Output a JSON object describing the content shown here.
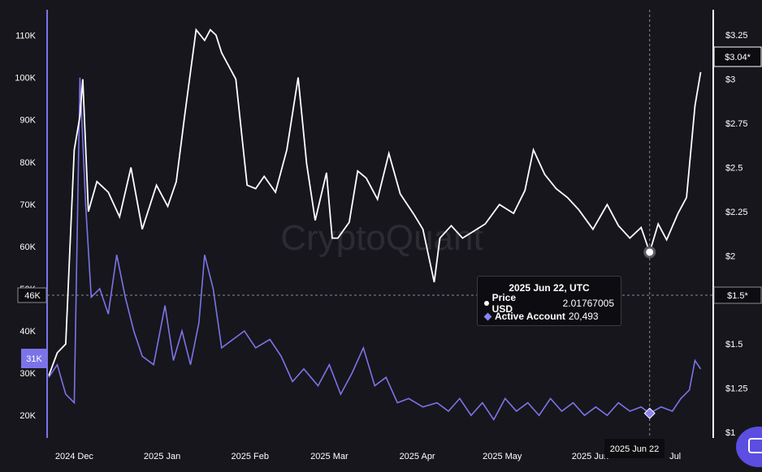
{
  "chart_data": {
    "type": "line",
    "watermark": "CryptoQuant",
    "x_ticks": [
      "2024 Dec",
      "2025 Jan",
      "2025 Feb",
      "2025 Mar",
      "2025 Apr",
      "2025 May",
      "2025 Jun",
      "Jul"
    ],
    "x_range": [
      "2024-11-22",
      "2025-07-11"
    ],
    "left_axis": {
      "ticks": [
        "110K",
        "100K",
        "90K",
        "80K",
        "70K",
        "60K",
        "50K",
        "40K",
        "30K",
        "20K"
      ],
      "range": [
        16000,
        113000
      ]
    },
    "right_axis": {
      "ticks": [
        "$3.25",
        "$3",
        "$2.75",
        "$2.5",
        "$2.25",
        "$2",
        "$1.75",
        "$1.5",
        "$1.25",
        "$1"
      ],
      "range": [
        1.0,
        3.32
      ]
    },
    "series": [
      {
        "name": "Price USD",
        "axis": "right",
        "color": "#ffffff",
        "x": [
          "2024-11-22",
          "2024-11-25",
          "2024-11-28",
          "2024-12-01",
          "2024-12-03",
          "2024-12-04",
          "2024-12-06",
          "2024-12-09",
          "2024-12-13",
          "2024-12-17",
          "2024-12-21",
          "2024-12-25",
          "2024-12-30",
          "2025-01-03",
          "2025-01-06",
          "2025-01-09",
          "2025-01-13",
          "2025-01-16",
          "2025-01-18",
          "2025-01-20",
          "2025-01-22",
          "2025-01-27",
          "2025-01-31",
          "2025-02-03",
          "2025-02-06",
          "2025-02-10",
          "2025-02-14",
          "2025-02-18",
          "2025-02-21",
          "2025-02-24",
          "2025-02-28",
          "2025-03-02",
          "2025-03-04",
          "2025-03-08",
          "2025-03-11",
          "2025-03-14",
          "2025-03-18",
          "2025-03-22",
          "2025-03-26",
          "2025-03-31",
          "2025-04-03",
          "2025-04-07",
          "2025-04-09",
          "2025-04-13",
          "2025-04-17",
          "2025-04-21",
          "2025-04-25",
          "2025-04-30",
          "2025-05-05",
          "2025-05-09",
          "2025-05-12",
          "2025-05-16",
          "2025-05-20",
          "2025-05-24",
          "2025-05-28",
          "2025-06-02",
          "2025-06-07",
          "2025-06-11",
          "2025-06-15",
          "2025-06-19",
          "2025-06-22",
          "2025-06-25",
          "2025-06-28",
          "2025-07-02",
          "2025-07-05",
          "2025-07-08",
          "2025-07-10"
        ],
        "y": [
          1.32,
          1.45,
          1.5,
          2.6,
          2.79,
          3.0,
          2.25,
          2.42,
          2.36,
          2.22,
          2.5,
          2.15,
          2.4,
          2.28,
          2.42,
          2.8,
          3.28,
          3.22,
          3.28,
          3.25,
          3.15,
          3.0,
          2.4,
          2.38,
          2.45,
          2.36,
          2.6,
          3.01,
          2.52,
          2.2,
          2.47,
          2.1,
          2.1,
          2.19,
          2.48,
          2.44,
          2.32,
          2.58,
          2.35,
          2.23,
          2.15,
          1.85,
          2.1,
          2.17,
          2.1,
          2.14,
          2.18,
          2.29,
          2.24,
          2.37,
          2.6,
          2.46,
          2.38,
          2.33,
          2.26,
          2.15,
          2.29,
          2.17,
          2.1,
          2.16,
          2.02,
          2.18,
          2.09,
          2.24,
          2.33,
          2.85,
          3.04
        ]
      },
      {
        "name": "Active Account",
        "axis": "left",
        "color": "#7b74e8",
        "x": [
          "2024-11-22",
          "2024-11-25",
          "2024-11-28",
          "2024-12-01",
          "2024-12-03",
          "2024-12-05",
          "2024-12-07",
          "2024-12-10",
          "2024-12-13",
          "2024-12-16",
          "2024-12-19",
          "2024-12-22",
          "2024-12-25",
          "2024-12-29",
          "2025-01-02",
          "2025-01-05",
          "2025-01-08",
          "2025-01-11",
          "2025-01-14",
          "2025-01-16",
          "2025-01-19",
          "2025-01-22",
          "2025-01-26",
          "2025-01-30",
          "2025-02-03",
          "2025-02-08",
          "2025-02-12",
          "2025-02-16",
          "2025-02-20",
          "2025-02-25",
          "2025-03-01",
          "2025-03-05",
          "2025-03-09",
          "2025-03-13",
          "2025-03-17",
          "2025-03-21",
          "2025-03-25",
          "2025-03-29",
          "2025-04-03",
          "2025-04-08",
          "2025-04-12",
          "2025-04-16",
          "2025-04-20",
          "2025-04-24",
          "2025-04-28",
          "2025-05-02",
          "2025-05-06",
          "2025-05-10",
          "2025-05-14",
          "2025-05-18",
          "2025-05-22",
          "2025-05-26",
          "2025-05-30",
          "2025-06-03",
          "2025-06-07",
          "2025-06-11",
          "2025-06-15",
          "2025-06-19",
          "2025-06-22",
          "2025-06-26",
          "2025-06-30",
          "2025-07-03",
          "2025-07-06",
          "2025-07-08",
          "2025-07-10"
        ],
        "y": [
          29000,
          32000,
          25000,
          23000,
          100000,
          70000,
          48000,
          50000,
          44000,
          58000,
          48000,
          40000,
          34000,
          32000,
          46000,
          33000,
          40000,
          32000,
          42000,
          58000,
          50000,
          36000,
          38000,
          40000,
          36000,
          38000,
          34000,
          28000,
          31000,
          27000,
          32000,
          25000,
          30000,
          36000,
          27000,
          29000,
          23000,
          24000,
          22000,
          23000,
          21000,
          24000,
          20000,
          23000,
          19000,
          24000,
          21000,
          23000,
          20000,
          24000,
          21000,
          23000,
          20000,
          22000,
          20000,
          23000,
          21000,
          22000,
          20493,
          22000,
          21000,
          24000,
          26000,
          33000,
          31000
        ]
      }
    ],
    "crosshair": {
      "date": "2025-06-22",
      "date_label": "2025 Jun 22",
      "left_label": "46K",
      "right_label": "$1.5*"
    },
    "last_value_labels": {
      "right": "$3.04*",
      "left": "31K"
    },
    "tooltip": {
      "title": "2025 Jun 22, UTC",
      "rows": [
        {
          "label": "Price USD",
          "value": "2.01767005"
        },
        {
          "label": "Active Account",
          "value": "20,493"
        }
      ]
    }
  }
}
